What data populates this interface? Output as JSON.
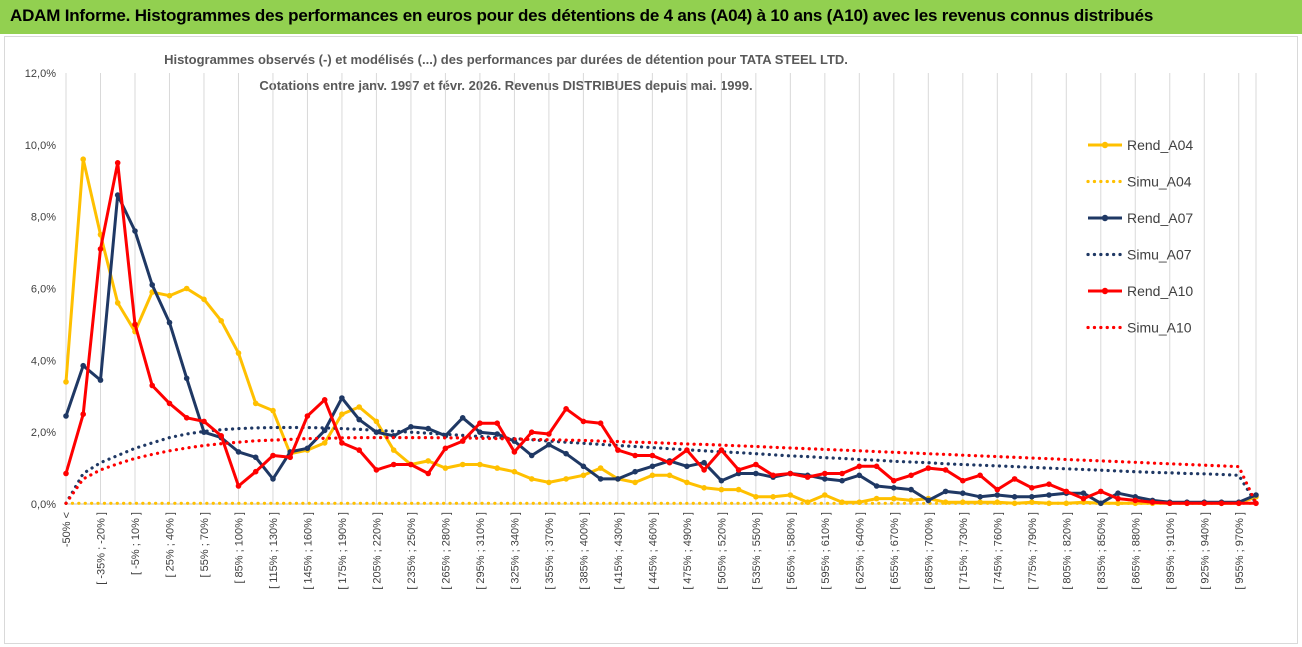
{
  "page": {
    "header": "ADAM Informe. Histogrammes des performances en euros pour des détentions de 4 ans (A04) à 10 ans (A10) avec les revenus connus distribués"
  },
  "colors": {
    "header_bg": "#92d050",
    "A04": "#ffc000",
    "A07": "#1f3864",
    "A10": "#ff0000"
  },
  "chart_data": {
    "type": "line",
    "title": [
      "Histogrammes observés (-) et modélisés (...) des performances par durées de détention pour TATA STEEL LTD.",
      "Cotations entre janv. 1997 et févr. 2026. Revenus DISTRIBUES depuis mai. 1999."
    ],
    "ylim": [
      0,
      12
    ],
    "yticks": [
      "0,0%",
      "2,0%",
      "4,0%",
      "6,0%",
      "8,0%",
      "10,0%",
      "12,0%"
    ],
    "x_labels": [
      "-50% <",
      "[ -35% ; -20% ]",
      "[ -5% ; 10% ]",
      "[ 25% ; 40% ]",
      "[ 55% ; 70% ]",
      "[ 85% ; 100% ]",
      "[ 115% ; 130% ]",
      "[ 145% ; 160% ]",
      "[ 175% ; 190% ]",
      "[ 205% ; 220% ]",
      "[ 235% ; 250% ]",
      "[ 265% ; 280% ]",
      "[ 295% ; 310% ]",
      "[ 325% ; 340% ]",
      "[ 355% ; 370% ]",
      "[ 385% ; 400% ]",
      "[ 415% ; 430% ]",
      "[ 445% ; 460% ]",
      "[ 475% ; 490% ]",
      "[ 505% ; 520% ]",
      "[ 535% ; 550% ]",
      "[ 565% ; 580% ]",
      "[ 595% ; 610% ]",
      "[ 625% ; 640% ]",
      "[ 655% ; 670% ]",
      "[ 685% ; 700% ]",
      "[ 715% ; 730% ]",
      "[ 745% ; 760% ]",
      "[ 775% ; 790% ]",
      "[ 805% ; 820% ]",
      "[ 835% ; 850% ]",
      "[ 865% ; 880% ]",
      "[ 895% ; 910% ]",
      "[ 925% ; 940% ]",
      "[ 955% ; 970% ]"
    ],
    "n_points": 70,
    "series": [
      {
        "name": "Rend_A04",
        "style": "solid",
        "color": "#ffc000",
        "values": [
          3.4,
          9.6,
          7.5,
          5.6,
          4.8,
          5.9,
          5.8,
          6.0,
          5.7,
          5.1,
          4.2,
          2.8,
          2.6,
          1.4,
          1.5,
          1.7,
          2.5,
          2.7,
          2.3,
          1.5,
          1.1,
          1.2,
          1.0,
          1.1,
          1.1,
          1.0,
          0.9,
          0.7,
          0.6,
          0.7,
          0.8,
          1.0,
          0.7,
          0.6,
          0.8,
          0.8,
          0.6,
          0.45,
          0.4,
          0.4,
          0.2,
          0.2,
          0.25,
          0.05,
          0.25,
          0.05,
          0.05,
          0.15,
          0.15,
          0.1,
          0.15,
          0.05,
          0.05,
          0.05,
          0.05,
          0.02,
          0.05,
          0.02,
          0.02,
          0.05,
          0.02,
          0.02,
          0.02,
          0.02,
          0.02,
          0.02,
          0.02,
          0.02,
          0.02,
          0.2
        ]
      },
      {
        "name": "Simu_A04",
        "style": "dotted",
        "color": "#ffc000",
        "values": [
          0.02,
          0.02,
          0.02,
          0.02,
          0.02,
          0.02,
          0.02,
          0.02,
          0.02,
          0.02,
          0.02,
          0.02,
          0.02,
          0.02,
          0.02,
          0.02,
          0.02,
          0.02,
          0.02,
          0.02,
          0.02,
          0.02,
          0.02,
          0.02,
          0.02,
          0.02,
          0.02,
          0.02,
          0.02,
          0.02,
          0.02,
          0.02,
          0.02,
          0.02,
          0.02,
          0.02,
          0.02,
          0.02,
          0.02,
          0.02,
          0.02,
          0.02,
          0.02,
          0.02,
          0.02,
          0.02,
          0.02,
          0.02,
          0.02,
          0.02,
          0.02,
          0.02,
          0.02,
          0.02,
          0.02,
          0.02,
          0.02,
          0.02,
          0.02,
          0.02,
          0.02,
          0.02,
          0.02,
          0.02,
          0.02,
          0.02,
          0.02,
          0.02,
          0.02,
          0.02
        ]
      },
      {
        "name": "Rend_A07",
        "style": "solid",
        "color": "#1f3864",
        "values": [
          2.45,
          3.85,
          3.45,
          8.6,
          7.6,
          6.1,
          5.05,
          3.5,
          2.0,
          1.85,
          1.45,
          1.3,
          0.7,
          1.45,
          1.55,
          2.05,
          2.95,
          2.35,
          2.0,
          1.9,
          2.15,
          2.1,
          1.9,
          2.4,
          2.0,
          1.95,
          1.75,
          1.35,
          1.65,
          1.4,
          1.05,
          0.7,
          0.7,
          0.9,
          1.05,
          1.2,
          1.05,
          1.15,
          0.65,
          0.85,
          0.85,
          0.75,
          0.85,
          0.8,
          0.7,
          0.65,
          0.8,
          0.5,
          0.45,
          0.4,
          0.1,
          0.35,
          0.3,
          0.2,
          0.25,
          0.2,
          0.2,
          0.25,
          0.3,
          0.3,
          0.02,
          0.3,
          0.2,
          0.1,
          0.05,
          0.05,
          0.05,
          0.05,
          0.05,
          0.25
        ]
      },
      {
        "name": "Simu_A07",
        "style": "dotted",
        "color": "#1f3864",
        "values": [
          0.02,
          0.85,
          1.15,
          1.35,
          1.55,
          1.7,
          1.85,
          1.95,
          2.02,
          2.07,
          2.1,
          2.12,
          2.13,
          2.13,
          2.13,
          2.12,
          2.1,
          2.08,
          2.05,
          2.03,
          2.0,
          1.97,
          1.94,
          1.91,
          1.88,
          1.85,
          1.82,
          1.79,
          1.75,
          1.72,
          1.69,
          1.66,
          1.63,
          1.6,
          1.57,
          1.54,
          1.51,
          1.48,
          1.45,
          1.43,
          1.4,
          1.37,
          1.34,
          1.32,
          1.29,
          1.27,
          1.24,
          1.22,
          1.19,
          1.17,
          1.15,
          1.12,
          1.1,
          1.08,
          1.06,
          1.04,
          1.02,
          1.0,
          0.98,
          0.96,
          0.94,
          0.92,
          0.9,
          0.88,
          0.87,
          0.85,
          0.84,
          0.82,
          0.8,
          0.02
        ]
      },
      {
        "name": "Rend_A10",
        "style": "solid",
        "color": "#ff0000",
        "values": [
          0.85,
          2.5,
          7.1,
          9.5,
          5.0,
          3.3,
          2.8,
          2.4,
          2.3,
          1.9,
          0.5,
          0.9,
          1.35,
          1.3,
          2.45,
          2.9,
          1.7,
          1.5,
          0.95,
          1.1,
          1.1,
          0.85,
          1.55,
          1.75,
          2.25,
          2.25,
          1.45,
          2.0,
          1.95,
          2.65,
          2.3,
          2.25,
          1.5,
          1.35,
          1.35,
          1.15,
          1.5,
          0.95,
          1.5,
          0.95,
          1.1,
          0.8,
          0.85,
          0.75,
          0.85,
          0.85,
          1.05,
          1.05,
          0.65,
          0.8,
          1.0,
          0.95,
          0.65,
          0.8,
          0.4,
          0.7,
          0.45,
          0.55,
          0.35,
          0.15,
          0.35,
          0.15,
          0.1,
          0.05,
          0.02,
          0.02,
          0.02,
          0.02,
          0.02,
          0.02
        ]
      },
      {
        "name": "Simu_A10",
        "style": "dotted",
        "color": "#ff0000",
        "values": [
          0.02,
          0.7,
          0.95,
          1.12,
          1.27,
          1.38,
          1.48,
          1.56,
          1.63,
          1.68,
          1.72,
          1.76,
          1.78,
          1.8,
          1.82,
          1.83,
          1.84,
          1.85,
          1.85,
          1.85,
          1.85,
          1.85,
          1.84,
          1.84,
          1.83,
          1.82,
          1.81,
          1.8,
          1.79,
          1.78,
          1.77,
          1.75,
          1.74,
          1.72,
          1.71,
          1.69,
          1.67,
          1.66,
          1.64,
          1.62,
          1.6,
          1.58,
          1.56,
          1.54,
          1.52,
          1.5,
          1.48,
          1.46,
          1.44,
          1.42,
          1.4,
          1.38,
          1.36,
          1.34,
          1.32,
          1.3,
          1.28,
          1.26,
          1.24,
          1.22,
          1.2,
          1.18,
          1.16,
          1.14,
          1.12,
          1.1,
          1.08,
          1.06,
          1.04,
          0.02
        ]
      }
    ]
  }
}
